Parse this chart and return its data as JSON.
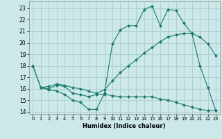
{
  "xlabel": "Humidex (Indice chaleur)",
  "background_color": "#cce8e8",
  "grid_color": "#aacccc",
  "line_color": "#1a7a6e",
  "xlim": [
    -0.5,
    23.5
  ],
  "ylim": [
    13.8,
    23.6
  ],
  "yticks": [
    14,
    15,
    16,
    17,
    18,
    19,
    20,
    21,
    22,
    23
  ],
  "xticks": [
    0,
    1,
    2,
    3,
    4,
    5,
    6,
    7,
    8,
    9,
    10,
    11,
    12,
    13,
    14,
    15,
    16,
    17,
    18,
    19,
    20,
    21,
    22,
    23
  ],
  "line1_x": [
    0,
    1,
    2,
    3,
    4,
    5,
    6,
    7,
    8,
    9,
    10,
    11,
    12,
    13,
    14,
    15,
    16,
    17,
    18,
    19,
    20,
    21,
    22,
    23
  ],
  "line1_y": [
    18.0,
    16.1,
    15.9,
    15.8,
    15.5,
    15.0,
    14.8,
    14.2,
    14.2,
    15.6,
    19.9,
    21.1,
    21.5,
    21.5,
    22.9,
    23.2,
    21.5,
    22.9,
    22.8,
    21.7,
    20.8,
    18.0,
    16.1,
    14.1
  ],
  "line2_x": [
    0,
    1,
    2,
    3,
    4,
    5,
    6,
    7,
    8,
    9,
    10,
    11,
    12,
    13,
    14,
    15,
    16,
    17,
    18,
    19,
    20,
    21,
    22,
    23
  ],
  "line2_y": [
    18.0,
    16.1,
    16.0,
    16.3,
    16.2,
    15.6,
    15.5,
    15.3,
    15.5,
    15.5,
    15.4,
    15.3,
    15.3,
    15.3,
    15.3,
    15.3,
    15.1,
    15.0,
    14.8,
    14.6,
    14.4,
    14.2,
    14.1,
    14.1
  ],
  "line3_x": [
    1,
    2,
    3,
    4,
    5,
    6,
    7,
    8,
    9,
    10,
    11,
    12,
    13,
    14,
    15,
    16,
    17,
    18,
    19,
    20,
    21,
    22,
    23
  ],
  "line3_y": [
    16.1,
    16.2,
    16.4,
    16.3,
    16.1,
    16.0,
    15.8,
    15.6,
    15.9,
    16.7,
    17.4,
    18.0,
    18.5,
    19.1,
    19.6,
    20.1,
    20.5,
    20.7,
    20.8,
    20.8,
    20.5,
    19.9,
    18.9
  ]
}
